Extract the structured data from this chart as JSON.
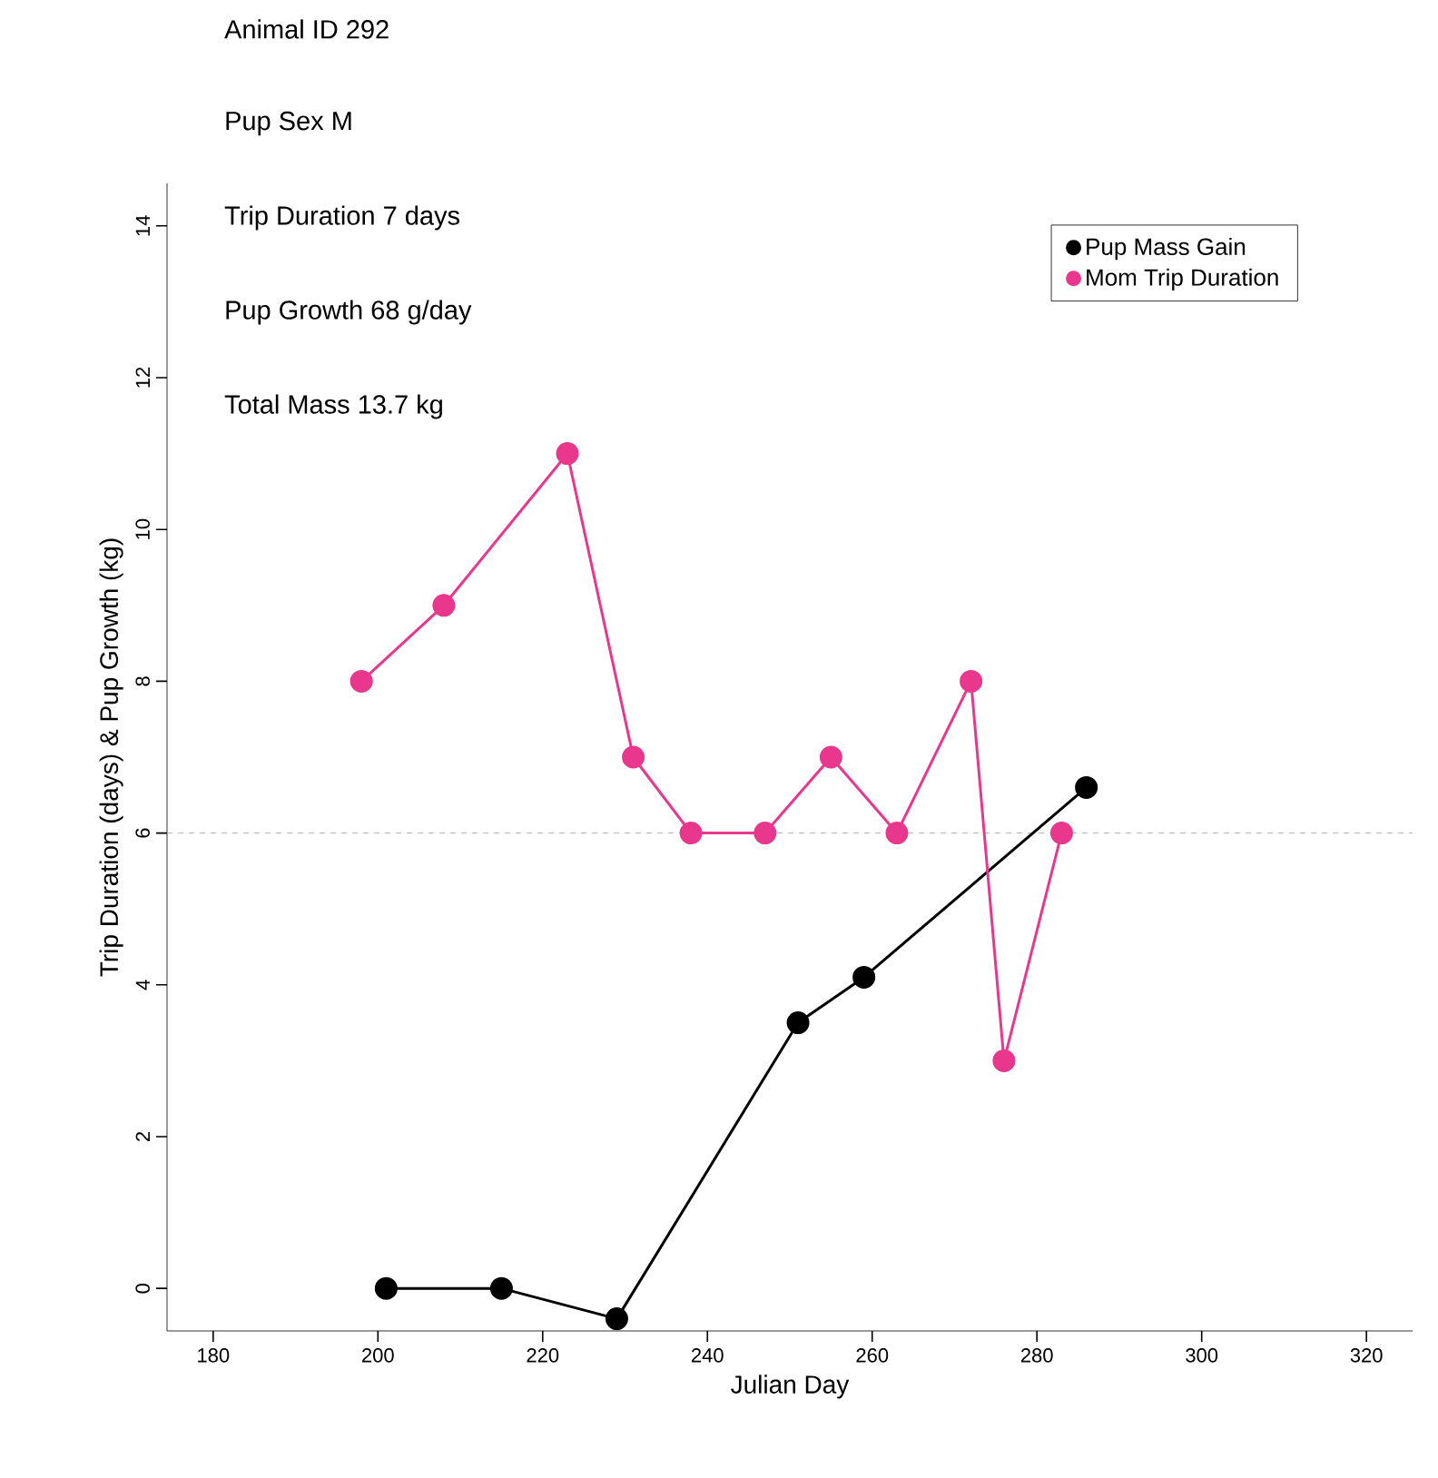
{
  "chart_data": {
    "type": "line",
    "xlabel": "Julian Day",
    "ylabel": "Trip Duration (days) & Pup Growth (kg)",
    "annotations": [
      "Animal ID 292",
      "Pup Sex M",
      "Trip Duration 7 days",
      "Pup Growth 68 g/day",
      "Total Mass 13.7 kg"
    ],
    "series": [
      {
        "name": "Pup Mass Gain",
        "color": "#000000",
        "x": [
          201,
          215,
          229,
          251,
          259,
          286
        ],
        "values": [
          0,
          0,
          -0.4,
          3.5,
          4.1,
          6.6
        ]
      },
      {
        "name": "Mom Trip Duration",
        "color": "#e8378c",
        "x": [
          198,
          208,
          223,
          231,
          238,
          247,
          255,
          263,
          272,
          276,
          283
        ],
        "values": [
          8,
          9,
          11,
          7,
          6,
          6,
          7,
          6,
          8,
          3,
          6
        ]
      }
    ],
    "xlim": [
      174.4,
      325.6
    ],
    "ylim": [
      -0.56,
      14.56
    ],
    "xticks": [
      180,
      200,
      220,
      240,
      260,
      280,
      300,
      320
    ],
    "yticks": [
      0,
      2,
      4,
      6,
      8,
      10,
      12,
      14
    ],
    "ref_lines": [
      {
        "axis": "y",
        "value": 6,
        "color": "#a0a0a0",
        "line_style": "dashed"
      }
    ],
    "marker": "circle",
    "line_style": "solid",
    "legend": "top right",
    "grid": false
  }
}
